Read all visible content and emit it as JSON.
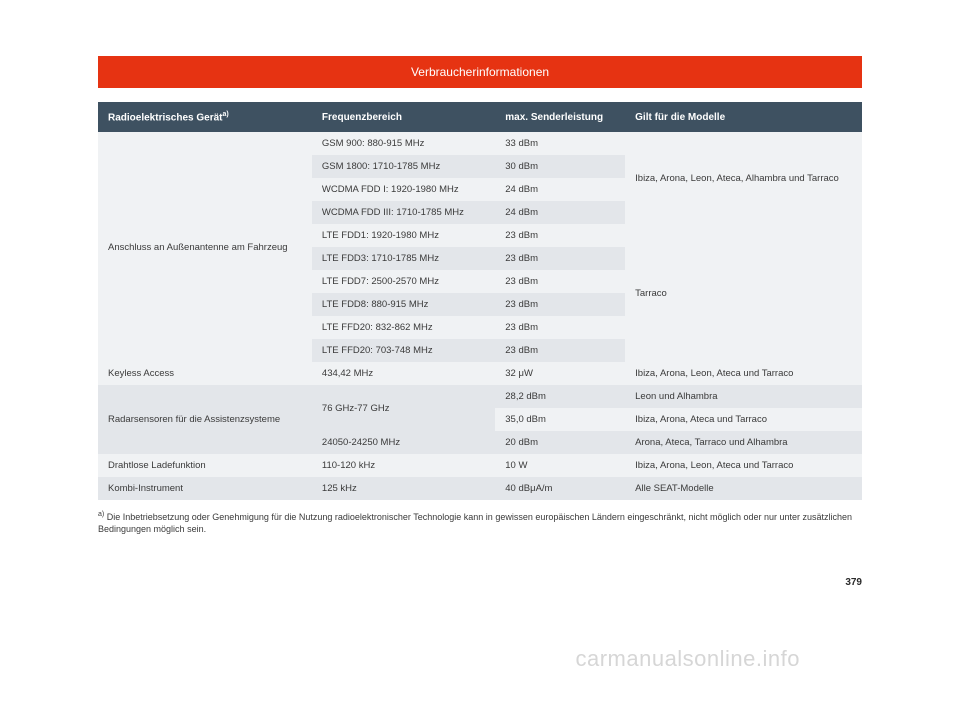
{
  "title": "Verbraucherinformationen",
  "columns": {
    "device": "Radioelektrisches Gerät",
    "device_sup": "a)",
    "frequency": "Frequenzbereich",
    "power": "max. Senderleistung",
    "models": "Gilt für die Modelle"
  },
  "rows": {
    "r1_device": "Anschluss an Außenantenne am Fahrzeug",
    "r1_models_a": "Ibiza, Arona, Leon, Ateca, Alhambra und Tarraco",
    "r1_models_b": "Tarraco",
    "r1a_freq": "GSM 900: 880-915 MHz",
    "r1a_pow": "33 dBm",
    "r1b_freq": "GSM 1800: 1710-1785 MHz",
    "r1b_pow": "30 dBm",
    "r1c_freq": "WCDMA FDD I: 1920-1980 MHz",
    "r1c_pow": "24 dBm",
    "r1d_freq": "WCDMA FDD III: 1710-1785 MHz",
    "r1d_pow": "24 dBm",
    "r1e_freq": "LTE FDD1: 1920-1980 MHz",
    "r1e_pow": "23 dBm",
    "r1f_freq": "LTE FDD3: 1710-1785 MHz",
    "r1f_pow": "23 dBm",
    "r1g_freq": "LTE FDD7: 2500-2570 MHz",
    "r1g_pow": "23 dBm",
    "r1h_freq": "LTE FDD8: 880-915 MHz",
    "r1h_pow": "23 dBm",
    "r1i_freq": "LTE FFD20: 832-862 MHz",
    "r1i_pow": "23 dBm",
    "r1j_freq": "LTE FFD20: 703-748 MHz",
    "r1j_pow": "23 dBm",
    "r2_device": "Keyless Access",
    "r2_freq": "434,42 MHz",
    "r2_pow": "32 μW",
    "r2_models": "Ibiza, Arona, Leon, Ateca und Tarraco",
    "r3_device": "Radarsensoren für die Assistenzsysteme",
    "r3a_freq": "76 GHz-77 GHz",
    "r3a_pow": "28,2 dBm",
    "r3a_models": "Leon und Alhambra",
    "r3b_pow": "35,0 dBm",
    "r3b_models": "Ibiza, Arona, Ateca und Tarraco",
    "r3c_freq": "24050-24250 MHz",
    "r3c_pow": "20 dBm",
    "r3c_models": "Arona, Ateca, Tarraco und Alhambra",
    "r4_device": "Drahtlose Ladefunktion",
    "r4_freq": "110-120 kHz",
    "r4_pow": "10 W",
    "r4_models": "Ibiza, Arona, Leon, Ateca und Tarraco",
    "r5_device": "Kombi-Instrument",
    "r5_freq": "125 kHz",
    "r5_pow": "40 dBμA/m",
    "r5_models": "Alle SEAT-Modelle"
  },
  "footnote": {
    "sup": "a)",
    "text": " Die Inbetriebsetzung oder Genehmigung für die Nutzung radioelektronischer Technologie kann in gewissen europäischen Ländern eingeschränkt, nicht möglich oder nur unter zusätzlichen Bedingungen möglich sein."
  },
  "page_number": "379",
  "watermark": "carmanualsonline.info",
  "colors": {
    "title_bg": "#e63312",
    "header_bg": "#3e5161",
    "row_odd": "#f0f2f4",
    "row_even": "#e3e6ea",
    "text": "#3a3a3a"
  }
}
